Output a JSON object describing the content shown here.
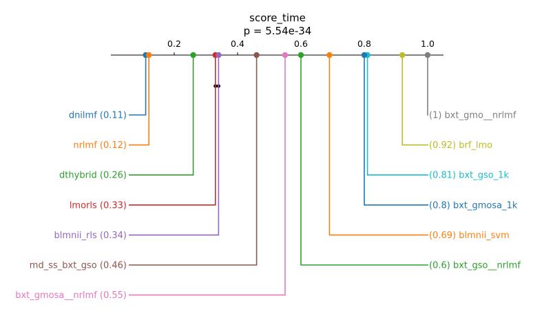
{
  "chart_data": {
    "type": "critical-difference",
    "title": "score_time",
    "subtitle": "p = 5.54e-34",
    "xlim": [
      0.0,
      1.05
    ],
    "ticks": [
      {
        "value": 0.2,
        "label": "0.2"
      },
      {
        "value": 0.4,
        "label": "0.4"
      },
      {
        "value": 0.6,
        "label": "0.6"
      },
      {
        "value": 0.8,
        "label": "0.8"
      },
      {
        "value": 1.0,
        "label": "1.0"
      }
    ],
    "entries": [
      {
        "name": "dnilmf",
        "score": 0.11,
        "score_label": "0.11",
        "side": "left",
        "color": "#1f77b4"
      },
      {
        "name": "nrlmf",
        "score": 0.12,
        "score_label": "0.12",
        "side": "left",
        "color": "#ff7f0e"
      },
      {
        "name": "dthybrid",
        "score": 0.26,
        "score_label": "0.26",
        "side": "left",
        "color": "#2ca02c"
      },
      {
        "name": "lmorls",
        "score": 0.33,
        "score_label": "0.33",
        "side": "left",
        "color": "#d62728"
      },
      {
        "name": "blmnii_rls",
        "score": 0.34,
        "score_label": "0.34",
        "side": "left",
        "color": "#9467bd"
      },
      {
        "name": "md_ss_bxt_gso",
        "score": 0.46,
        "score_label": "0.46",
        "side": "left",
        "color": "#8c564b"
      },
      {
        "name": "bxt_gmosa__nrlmf",
        "score": 0.55,
        "score_label": "0.55",
        "side": "left",
        "color": "#e377c2"
      },
      {
        "name": "bxt_gmo__nrlmf",
        "score": 1.0,
        "score_label": "1",
        "side": "right",
        "color": "#7f7f7f"
      },
      {
        "name": "brf_lmo",
        "score": 0.92,
        "score_label": "0.92",
        "side": "right",
        "color": "#bcbd22"
      },
      {
        "name": "bxt_gso_1k",
        "score": 0.81,
        "score_label": "0.81",
        "side": "right",
        "color": "#17becf"
      },
      {
        "name": "bxt_gmosa_1k",
        "score": 0.8,
        "score_label": "0.8",
        "side": "right",
        "color": "#1f77b4"
      },
      {
        "name": "blmnii_svm",
        "score": 0.69,
        "score_label": "0.69",
        "side": "right",
        "color": "#ff7f0e"
      },
      {
        "name": "bxt_gso__nrlmf",
        "score": 0.6,
        "score_label": "0.6",
        "side": "right",
        "color": "#2ca02c"
      }
    ],
    "groups": [
      {
        "from": 0.33,
        "to": 0.34,
        "color": "#000000"
      }
    ]
  }
}
